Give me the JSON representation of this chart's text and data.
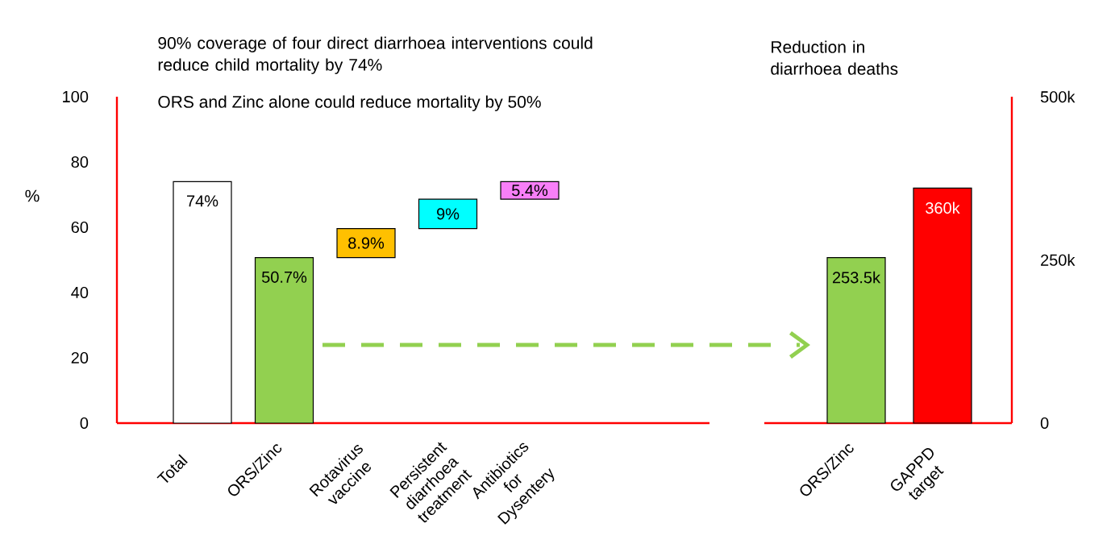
{
  "chart_data": [
    {
      "type": "bar",
      "title": "90% coverage of four direct diarrhoea interventions could reduce child mortality by 74%",
      "ylabel": "%",
      "annotations": [
        "ORS and Zinc alone could reduce mortality by 50%"
      ],
      "categories": [
        "Total",
        "ORS/Zinc",
        "Rotavirus vaccine",
        "Persistent diarrhoea treatment",
        "Antibiotics for Dysentery"
      ],
      "values": [
        74,
        50.7,
        8.9,
        9,
        5.4
      ],
      "base": [
        0,
        0,
        50.7,
        59.6,
        68.6
      ],
      "colors": [
        "#ffffff",
        "#92d050",
        "#ffc000",
        "#00ffff",
        "#f87ff8"
      ],
      "value_labels": [
        "74%",
        "50.7%",
        "8.9%",
        "9%",
        "5.4%"
      ],
      "ylim": [
        0,
        100
      ],
      "yticks": [
        0,
        20,
        40,
        60,
        80,
        100
      ],
      "grid": false
    },
    {
      "type": "bar",
      "title": "Reduction in diarrhoea deaths",
      "categories": [
        "ORS/Zinc",
        "GAPPD target"
      ],
      "values": [
        253500,
        360000
      ],
      "colors": [
        "#92d050",
        "#ff0000"
      ],
      "value_labels": [
        "253.5k",
        "360k"
      ],
      "ylim": [
        0,
        500000
      ],
      "yticks": [
        0,
        {
          "value": 250000,
          "label": "250k"
        },
        {
          "value": 500000,
          "label": "500k"
        }
      ],
      "grid": false
    }
  ]
}
